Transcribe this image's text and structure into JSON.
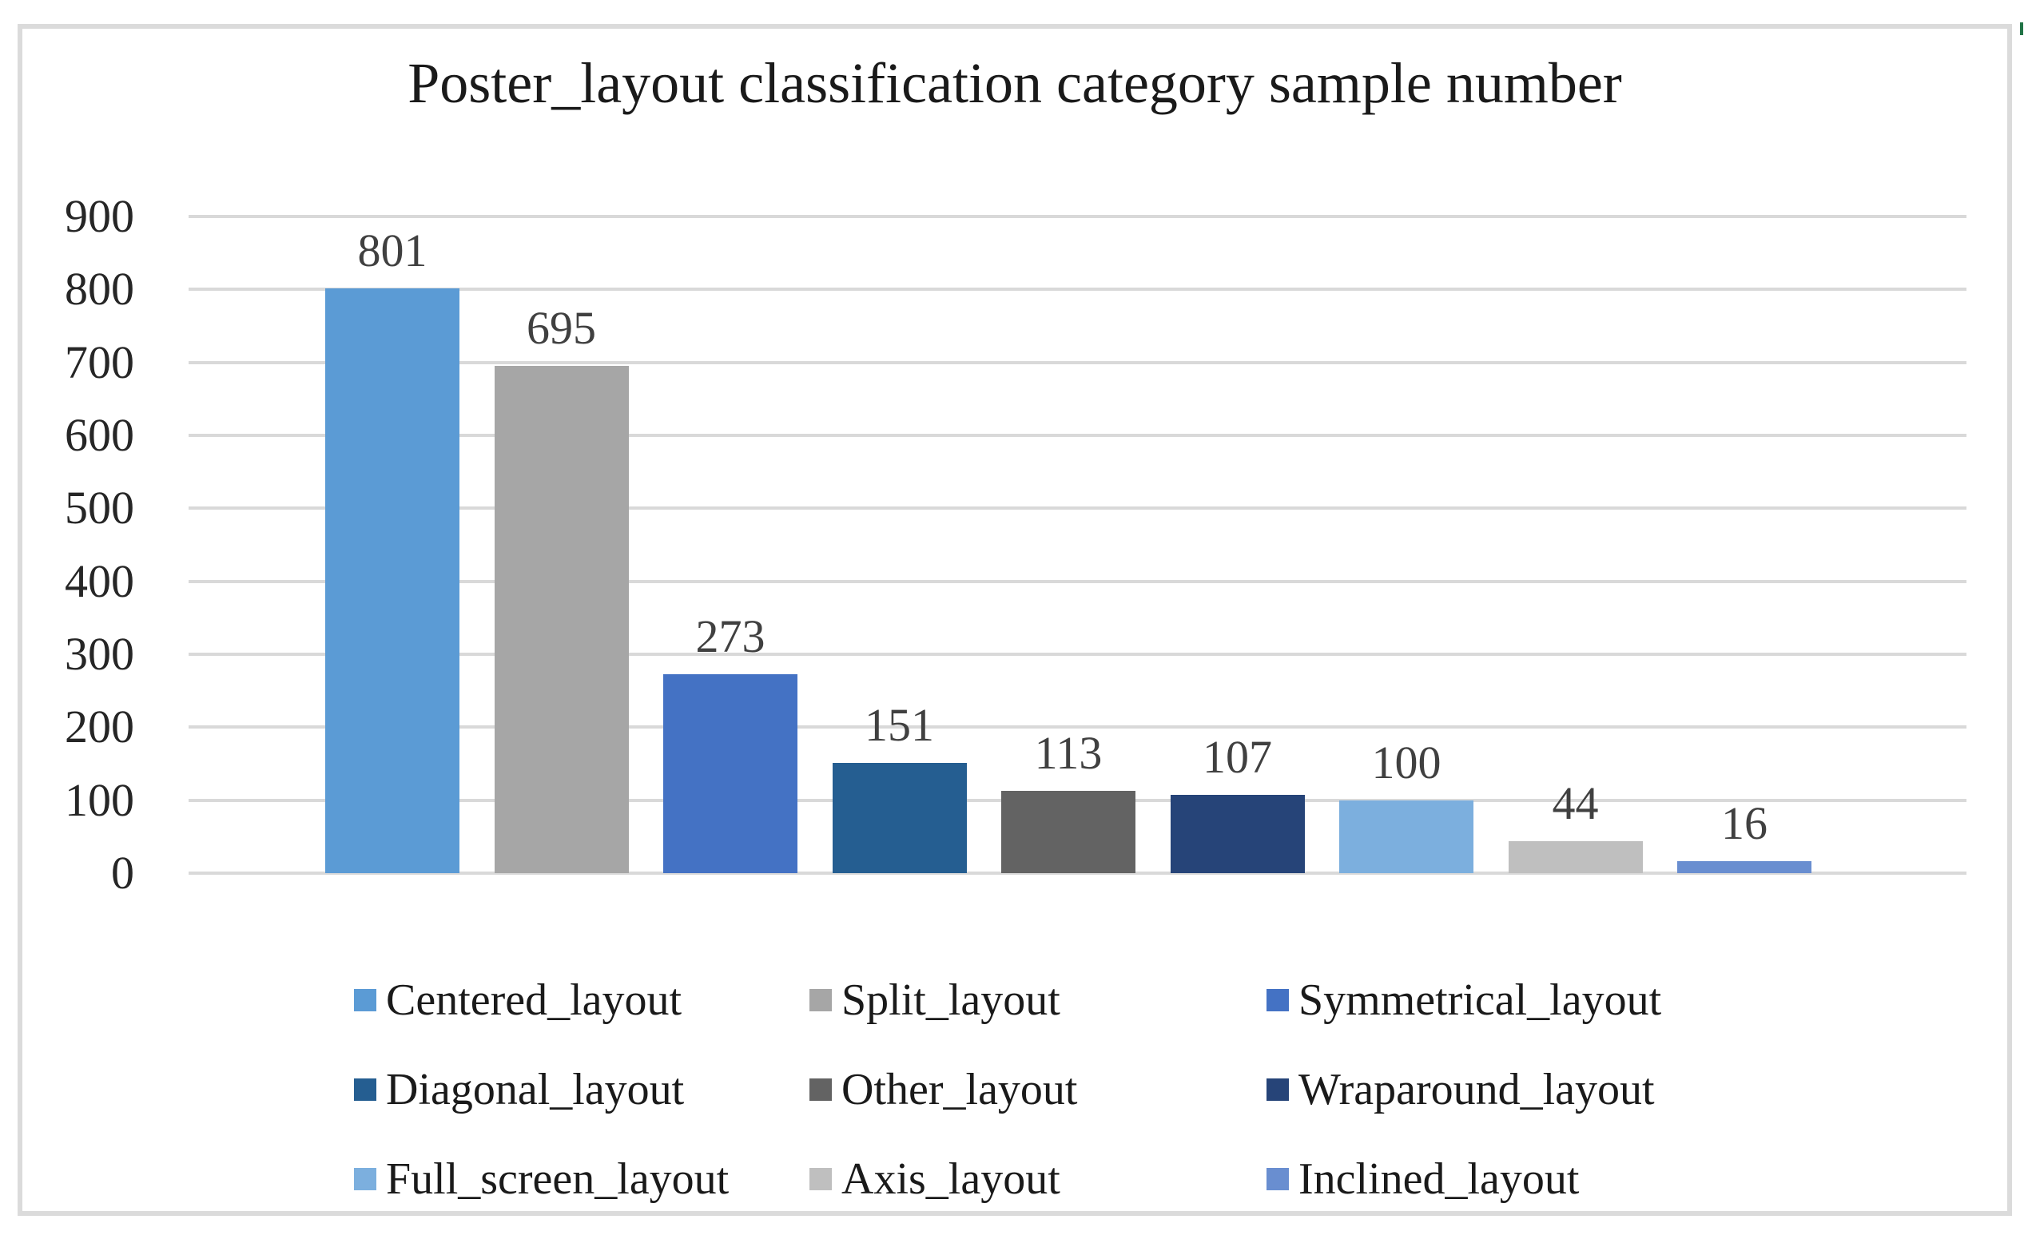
{
  "chart_data": {
    "type": "bar",
    "title": "Poster_layout classification category sample number",
    "categories": [
      "Centered_layout",
      "Split_layout",
      "Symmetrical_layout",
      "Diagonal_layout",
      "Other_layout",
      "Wraparound_layout",
      "Full_screen_layout",
      "Axis_layout",
      "Inclined_layout"
    ],
    "values": [
      801,
      695,
      273,
      151,
      113,
      107,
      100,
      44,
      16
    ],
    "data_labels": [
      "801",
      "695",
      "273",
      "151",
      "113",
      "107",
      "100",
      "44",
      "16"
    ],
    "colors": [
      "#5B9BD5",
      "#A6A6A6",
      "#4472C4",
      "#255E91",
      "#636363",
      "#264478",
      "#7CAFDE",
      "#BFBFBF",
      "#698ED0"
    ],
    "xlabel": "",
    "ylabel": "",
    "ylim": [
      0,
      900
    ],
    "ytick_step": 100,
    "yticks": [
      "900",
      "800",
      "700",
      "600",
      "500",
      "400",
      "300",
      "200",
      "100",
      "0"
    ],
    "grid": true,
    "legend_position": "bottom",
    "legend_columns": 3
  },
  "style": {
    "gridline_color": "#d9d9d9",
    "frame_border_color": "#dbdbdb",
    "tick_color": "#262626",
    "data_label_color": "#404040",
    "legend_text_color": "#1a1a1a",
    "title_color": "#1a1a1a",
    "background": "#ffffff"
  }
}
